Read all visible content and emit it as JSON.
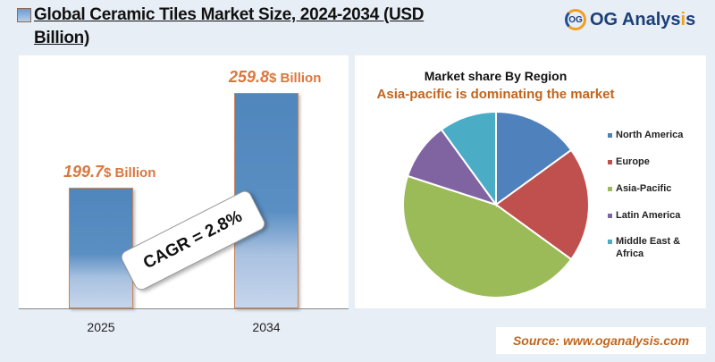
{
  "header": {
    "title": "Global Ceramic Tiles Market Size, 2024-2034 (USD Billion)",
    "logo_mark": "OG",
    "logo_text": "OG Analys",
    "logo_accent": "i",
    "logo_end": "s"
  },
  "chart_data": [
    {
      "type": "bar",
      "categories": [
        "2025",
        "2034"
      ],
      "values": [
        199.7,
        259.8
      ],
      "value_labels": [
        "199.7",
        "259.8"
      ],
      "unit_label": "$ Billion",
      "ylim": [
        123.2,
        260
      ],
      "annotation": "CAGR = 2.8%",
      "bar_color": "#4f86bb"
    },
    {
      "type": "pie",
      "title": "Market share By Region",
      "subtitle": "Asia-pacific is dominating the market",
      "legend_position": "right",
      "slices": [
        {
          "name": "North America",
          "value": 15,
          "color": "#4f81bd"
        },
        {
          "name": "Europe",
          "value": 20,
          "color": "#c0504d"
        },
        {
          "name": "Asia-Pacific",
          "value": 45,
          "color": "#9bbb59"
        },
        {
          "name": "Latin America",
          "value": 10,
          "color": "#8064a2"
        },
        {
          "name": "Middle East & Africa",
          "value": 10,
          "color": "#4bacc6"
        }
      ]
    }
  ],
  "footer": {
    "source": "Source: www.oganalysis.com"
  }
}
